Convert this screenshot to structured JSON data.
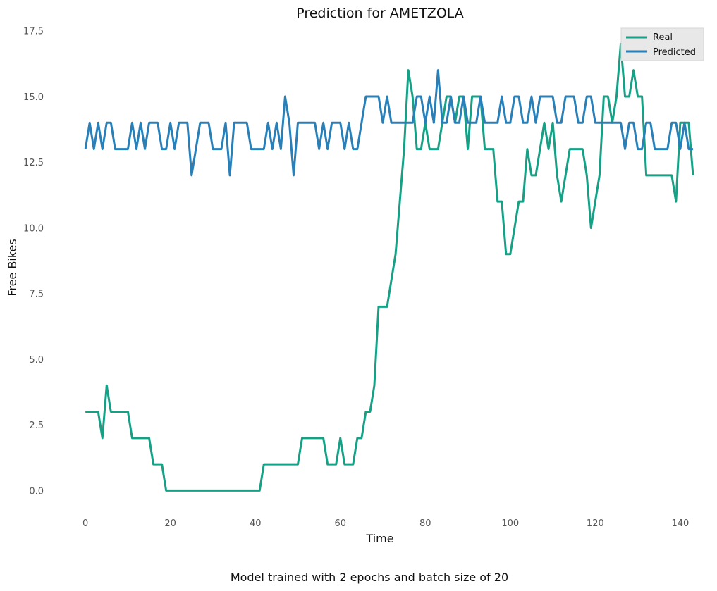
{
  "chart_data": {
    "type": "line",
    "title": "Prediction for AMETZOLA",
    "xlabel": "Time",
    "ylabel": "Free Bikes",
    "caption": "Model trained with 2 epochs and batch size of 20",
    "xlim": [
      -6,
      145
    ],
    "ylim": [
      -0.9,
      17.6
    ],
    "xticks": [
      0,
      20,
      40,
      60,
      80,
      100,
      120,
      140
    ],
    "yticks": [
      0.0,
      2.5,
      5.0,
      7.5,
      10.0,
      12.5,
      15.0,
      17.5
    ],
    "ytick_labels": [
      "0.0",
      "2.5",
      "5.0",
      "7.5",
      "10.0",
      "12.5",
      "15.0",
      "17.5"
    ],
    "grid": false,
    "legend": {
      "position": "top-right"
    },
    "series": [
      {
        "name": "Real",
        "color": "#16a085",
        "x": [
          0,
          1,
          2,
          3,
          4,
          5,
          6,
          7,
          8,
          9,
          10,
          11,
          12,
          13,
          14,
          15,
          16,
          17,
          18,
          19,
          20,
          21,
          22,
          23,
          24,
          25,
          26,
          27,
          28,
          29,
          30,
          31,
          32,
          33,
          34,
          35,
          36,
          37,
          38,
          39,
          40,
          41,
          42,
          43,
          44,
          45,
          46,
          47,
          48,
          49,
          50,
          51,
          52,
          53,
          54,
          55,
          56,
          57,
          58,
          59,
          60,
          61,
          62,
          63,
          64,
          65,
          66,
          67,
          68,
          69,
          70,
          71,
          72,
          73,
          74,
          75,
          76,
          77,
          78,
          79,
          80,
          81,
          82,
          83,
          84,
          85,
          86,
          87,
          88,
          89,
          90,
          91,
          92,
          93,
          94,
          95,
          96,
          97,
          98,
          99,
          100,
          101,
          102,
          103,
          104,
          105,
          106,
          107,
          108,
          109,
          110,
          111,
          112,
          113,
          114,
          115,
          116,
          117,
          118,
          119,
          120,
          121,
          122,
          123,
          124,
          125,
          126,
          127,
          128,
          129,
          130,
          131,
          132,
          133,
          134,
          135,
          136,
          137,
          138,
          139,
          140,
          141,
          142,
          143
        ],
        "values": [
          3,
          3,
          3,
          3,
          2,
          4,
          3,
          3,
          3,
          3,
          3,
          2,
          2,
          2,
          2,
          2,
          1,
          1,
          1,
          0,
          0,
          0,
          0,
          0,
          0,
          0,
          0,
          0,
          0,
          0,
          0,
          0,
          0,
          0,
          0,
          0,
          0,
          0,
          0,
          0,
          0,
          0,
          1,
          1,
          1,
          1,
          1,
          1,
          1,
          1,
          1,
          2,
          2,
          2,
          2,
          2,
          2,
          1,
          1,
          1,
          2,
          1,
          1,
          1,
          2,
          2,
          3,
          3,
          4,
          7,
          7,
          7,
          8,
          9,
          11,
          13,
          16,
          15,
          13,
          13,
          14,
          13,
          13,
          13,
          14,
          15,
          15,
          14,
          15,
          15,
          13,
          15,
          15,
          15,
          13,
          13,
          13,
          11,
          11,
          9,
          9,
          10,
          11,
          11,
          13,
          12,
          12,
          13,
          14,
          13,
          14,
          12,
          11,
          12,
          13,
          13,
          13,
          13,
          12,
          10,
          11,
          12,
          15,
          15,
          14,
          15,
          17,
          15,
          15,
          16,
          15,
          15,
          12,
          12,
          12,
          12,
          12,
          12,
          12,
          11,
          14,
          14,
          14,
          12
        ]
      },
      {
        "name": "Predicted",
        "color": "#2980b9",
        "x": [
          0,
          1,
          2,
          3,
          4,
          5,
          6,
          7,
          8,
          9,
          10,
          11,
          12,
          13,
          14,
          15,
          16,
          17,
          18,
          19,
          20,
          21,
          22,
          23,
          24,
          25,
          26,
          27,
          28,
          29,
          30,
          31,
          32,
          33,
          34,
          35,
          36,
          37,
          38,
          39,
          40,
          41,
          42,
          43,
          44,
          45,
          46,
          47,
          48,
          49,
          50,
          51,
          52,
          53,
          54,
          55,
          56,
          57,
          58,
          59,
          60,
          61,
          62,
          63,
          64,
          65,
          66,
          67,
          68,
          69,
          70,
          71,
          72,
          73,
          74,
          75,
          76,
          77,
          78,
          79,
          80,
          81,
          82,
          83,
          84,
          85,
          86,
          87,
          88,
          89,
          90,
          91,
          92,
          93,
          94,
          95,
          96,
          97,
          98,
          99,
          100,
          101,
          102,
          103,
          104,
          105,
          106,
          107,
          108,
          109,
          110,
          111,
          112,
          113,
          114,
          115,
          116,
          117,
          118,
          119,
          120,
          121,
          122,
          123,
          124,
          125,
          126,
          127,
          128,
          129,
          130,
          131,
          132,
          133,
          134,
          135,
          136,
          137,
          138,
          139,
          140,
          141,
          142,
          143
        ],
        "values": [
          13,
          14,
          13,
          14,
          13,
          14,
          14,
          13,
          13,
          13,
          13,
          14,
          13,
          14,
          13,
          14,
          14,
          14,
          13,
          13,
          14,
          13,
          14,
          14,
          14,
          12,
          13,
          14,
          14,
          14,
          13,
          13,
          13,
          14,
          12,
          14,
          14,
          14,
          14,
          13,
          13,
          13,
          13,
          14,
          13,
          14,
          13,
          15,
          14,
          12,
          14,
          14,
          14,
          14,
          14,
          13,
          14,
          13,
          14,
          14,
          14,
          13,
          14,
          13,
          13,
          14,
          15,
          15,
          15,
          15,
          14,
          15,
          14,
          14,
          14,
          14,
          14,
          14,
          15,
          15,
          14,
          15,
          14,
          16,
          14,
          14,
          15,
          14,
          14,
          15,
          14,
          14,
          14,
          15,
          14,
          14,
          14,
          14,
          15,
          14,
          14,
          15,
          15,
          14,
          14,
          15,
          14,
          15,
          15,
          15,
          15,
          14,
          14,
          15,
          15,
          15,
          14,
          14,
          15,
          15,
          14,
          14,
          14,
          14,
          14,
          14,
          14,
          13,
          14,
          14,
          13,
          13,
          14,
          14,
          13,
          13,
          13,
          13,
          14,
          14,
          13,
          14,
          13,
          13
        ]
      }
    ]
  }
}
